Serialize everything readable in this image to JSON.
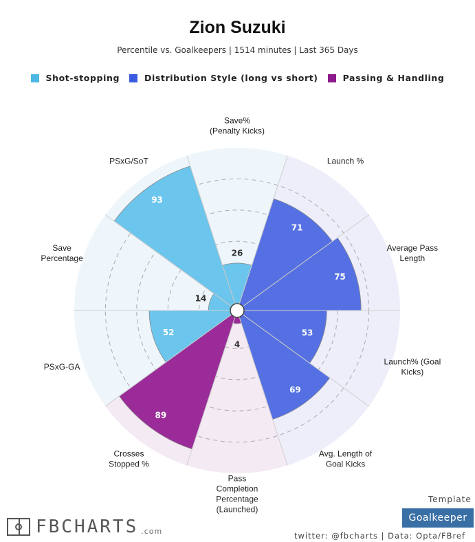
{
  "header": {
    "title": "Zion Suzuki",
    "subtitle": "Percentile vs. Goalkeepers | 1514 minutes | Last 365 Days"
  },
  "legend": [
    {
      "label": "Shot-stopping",
      "color": "#4db8e4"
    },
    {
      "label": "Distribution Style (long vs short)",
      "color": "#3a5be0"
    },
    {
      "label": "Passing & Handling",
      "color": "#8d1a8b"
    }
  ],
  "chart_data": {
    "type": "polar-bar",
    "title": "Zion Suzuki",
    "range": [
      0,
      100
    ],
    "rings": [
      20,
      40,
      60,
      80
    ],
    "categories": [
      {
        "label": [
          "Save%",
          "(Penalty Kicks)"
        ],
        "value": 26,
        "group": "Shot-stopping"
      },
      {
        "label": [
          "Launch %"
        ],
        "value": 71,
        "group": "Distribution Style (long vs short)"
      },
      {
        "label": [
          "Average Pass",
          "Length"
        ],
        "value": 75,
        "group": "Distribution Style (long vs short)"
      },
      {
        "label": [
          "Launch% (Goal",
          "Kicks)"
        ],
        "value": 53,
        "group": "Distribution Style (long vs short)"
      },
      {
        "label": [
          "Avg. Length of",
          "Goal Kicks"
        ],
        "value": 69,
        "group": "Distribution Style (long vs short)"
      },
      {
        "label": [
          "Pass",
          "Completion",
          "Percentage",
          "(Launched)"
        ],
        "value": 4,
        "group": "Passing & Handling"
      },
      {
        "label": [
          "Crosses",
          "Stopped %"
        ],
        "value": 89,
        "group": "Passing & Handling"
      },
      {
        "label": [
          "PSxG-GA"
        ],
        "value": 52,
        "group": "Shot-stopping"
      },
      {
        "label": [
          "Save",
          "Percentage"
        ],
        "value": 14,
        "group": "Shot-stopping"
      },
      {
        "label": [
          "PSxG/SoT"
        ],
        "value": 93,
        "group": "Shot-stopping"
      }
    ],
    "group_colors": {
      "Shot-stopping": {
        "bar": "#6cc5ec",
        "bg": "#eef6fb"
      },
      "Distribution Style (long vs short)": {
        "bar": "#5570e2",
        "bg": "#edeefa"
      },
      "Passing & Handling": {
        "bar": "#9a2b98",
        "bg": "#f4eaf3"
      }
    }
  },
  "footer": {
    "template_label": "Template",
    "template_value": "Goalkeeper",
    "credits": "twitter: @fbcharts | Data: Opta/FBref",
    "logo_text": "FBCHARTS",
    "logo_domain": ".com"
  }
}
